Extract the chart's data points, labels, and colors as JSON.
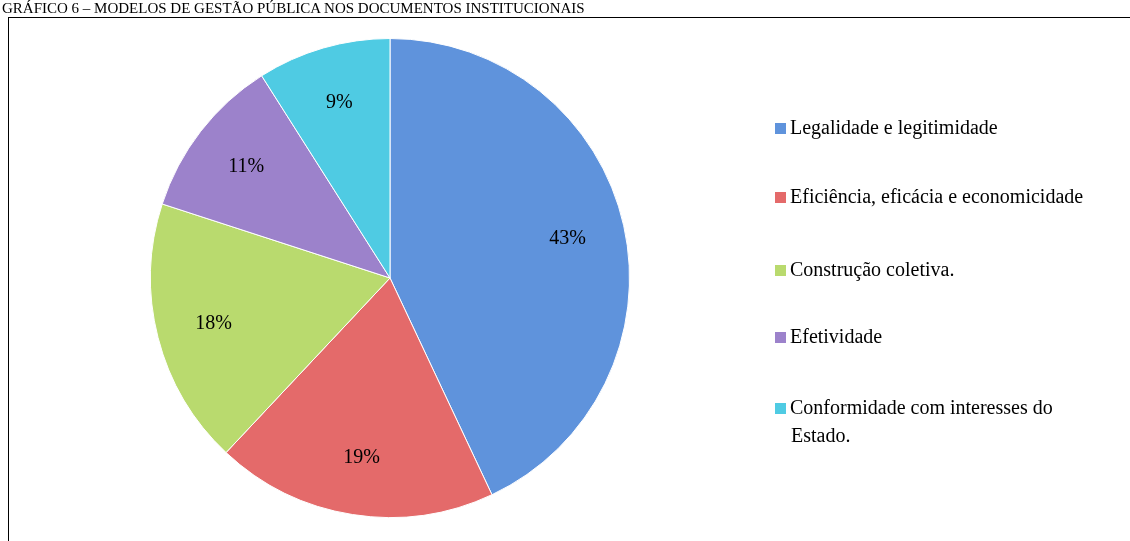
{
  "chart_data": {
    "type": "pie",
    "title": "GRÁFICO 6 – MODELOS DE GESTÃO PÚBLICA NOS DOCUMENTOS INSTITUCIONAIS",
    "categories": [
      "Legalidade e legitimidade",
      "Eficiência, eficácia e economicidade",
      "Construção coletiva.",
      "Efetividade",
      "Conformidade com interesses do Estado."
    ],
    "values": [
      43,
      19,
      18,
      11,
      9
    ],
    "value_labels": [
      "43%",
      "19%",
      "18%",
      "11%",
      "9%"
    ],
    "colors": [
      "#5f93dc",
      "#e46a6a",
      "#b9da6e",
      "#9c82cb",
      "#4fcbe3"
    ],
    "legend": "right"
  }
}
